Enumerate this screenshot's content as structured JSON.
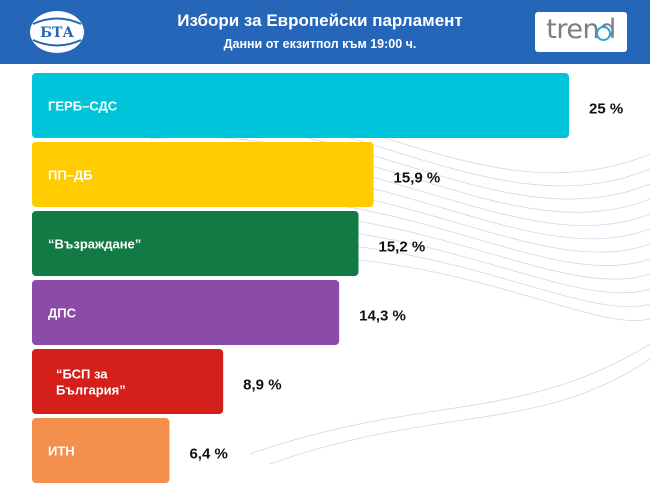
{
  "header": {
    "title": "Избори за Европейски парламент",
    "subtitle": "Данни от екзитпол към 19:00 ч.",
    "left_logo_text": "БТА",
    "right_logo_text": "trend",
    "background_color": "#2566b8"
  },
  "chart_data": {
    "type": "bar",
    "orientation": "horizontal",
    "title": "Избори за Европейски парламент",
    "subtitle": "Данни от екзитпол към 19:00 ч.",
    "unit": "%",
    "categories": [
      "ГЕРБ–СДС",
      "ПП–ДБ",
      "“Възраждане”",
      "ДПС",
      "“БСП за България”",
      "ИТН"
    ],
    "label_lines": [
      [
        "ГЕРБ–СДС"
      ],
      [
        "ПП–ДБ"
      ],
      [
        "“Възраждане”"
      ],
      [
        "ДПС"
      ],
      [
        "“БСП за",
        "България”"
      ],
      [
        "ИТН"
      ]
    ],
    "values": [
      25,
      15.9,
      15.2,
      14.3,
      8.9,
      6.4
    ],
    "value_labels": [
      "25 %",
      "15,9 %",
      "15,2 %",
      "14,3 %",
      "8,9 %",
      "6,4 %"
    ],
    "colors": [
      "#00c4d9",
      "#ffcc00",
      "#117a45",
      "#8a4ca8",
      "#d41f1a",
      "#f4904d"
    ],
    "xlim": [
      0,
      25
    ],
    "grid": false,
    "legend": "none"
  }
}
